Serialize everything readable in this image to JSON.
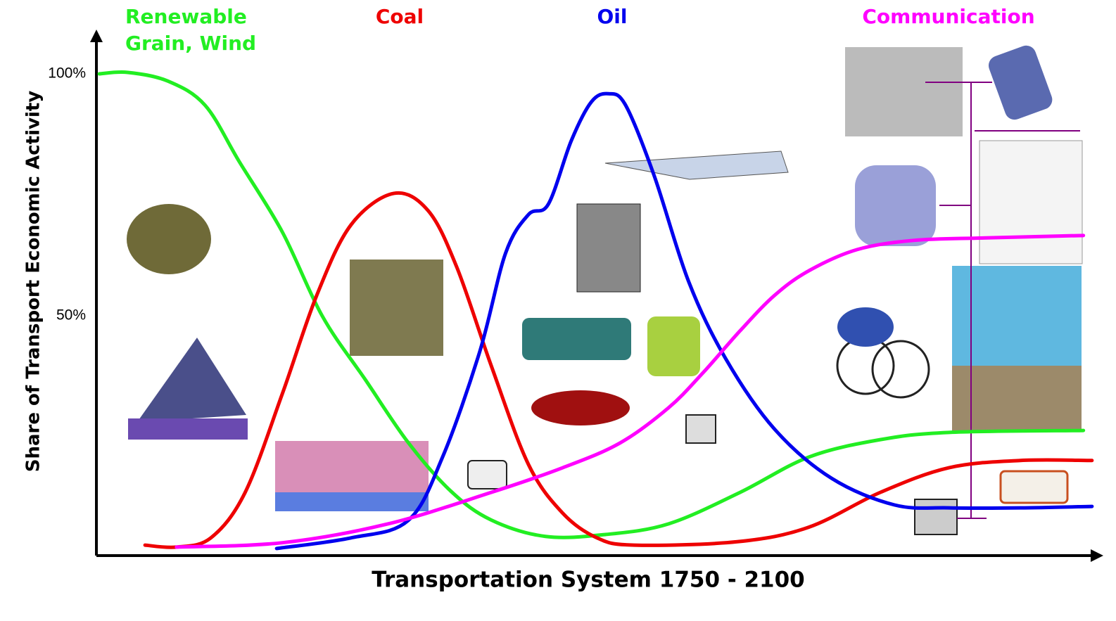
{
  "chart_data": {
    "type": "line",
    "x_label": "Transportation System 1750 - 2100",
    "y_label": "Share of Transport Economic Activity",
    "xlim": [
      1750,
      2100
    ],
    "ylim": [
      0,
      108
    ],
    "yticks": [
      {
        "value": 50,
        "label": "50%"
      },
      {
        "value": 100,
        "label": "100%"
      }
    ],
    "grid": false,
    "series": [
      {
        "name": "Renewable\nGrain, Wind",
        "color": "#22ee22",
        "x": [
          1751,
          1761,
          1775,
          1788,
          1800,
          1815,
          1829,
          1844,
          1859,
          1874,
          1888,
          1907,
          1928,
          1950,
          1975,
          1999,
          2024,
          2048,
          2095
        ],
        "values": [
          100,
          100.3,
          98.5,
          93.5,
          81.8,
          67.3,
          49.9,
          36.8,
          23.8,
          13.7,
          7.8,
          4.4,
          4.8,
          7,
          13.5,
          20.8,
          24.4,
          25.9,
          26.3
        ]
      },
      {
        "name": "Coal",
        "color": "#ee0000",
        "x": [
          1767,
          1778,
          1790,
          1802,
          1815,
          1827,
          1839,
          1854,
          1866,
          1876,
          1888,
          1901,
          1913,
          1925,
          1938,
          1974,
          1999,
          2024,
          2048,
          2073,
          2098
        ],
        "values": [
          2.6,
          2.2,
          4.1,
          13.5,
          33.9,
          54.2,
          68.8,
          75.3,
          71.7,
          60,
          39.7,
          19.3,
          9.2,
          4.1,
          2.6,
          3.3,
          6.3,
          13.5,
          18.6,
          20.1,
          20.1
        ]
      },
      {
        "name": "Oil",
        "color": "#0000ee",
        "x": [
          1813,
          1839,
          1859,
          1871,
          1884,
          1893,
          1901,
          1908,
          1916,
          1923,
          1929,
          1935,
          1945,
          1957,
          1970,
          1987,
          2007,
          2029,
          2048,
          2073,
          2098
        ],
        "values": [
          1.9,
          4.1,
          7.7,
          20.8,
          42.6,
          62.9,
          70.9,
          73.1,
          86.2,
          94.2,
          95.9,
          93.5,
          78.9,
          57.1,
          41.1,
          26.6,
          16.4,
          10.9,
          10.3,
          10.3,
          10.6
        ]
      },
      {
        "name": "Communication",
        "color": "#ff00ff",
        "x": [
          1778,
          1815,
          1852,
          1888,
          1913,
          1933,
          1950,
          1962,
          1975,
          1987,
          1999,
          2016,
          2036,
          2061,
          2095
        ],
        "values": [
          2.2,
          3.1,
          7,
          13.5,
          18.6,
          23.7,
          31,
          38.2,
          46.9,
          54.2,
          59.3,
          63.7,
          65.6,
          66.1,
          66.6
        ]
      }
    ]
  }
}
